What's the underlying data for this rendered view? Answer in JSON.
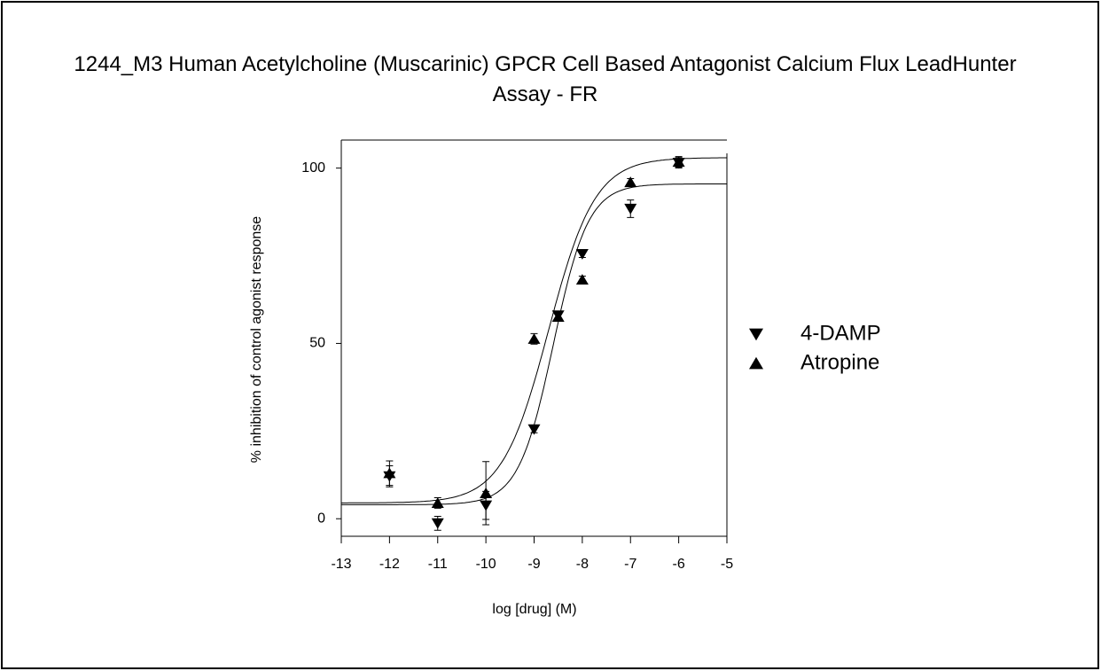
{
  "chart_data": {
    "type": "scatter",
    "title": "1244_M3 Human Acetylcholine (Muscarinic) GPCR Cell Based Antagonist Calcium Flux LeadHunter Assay - FR",
    "x_label": "log [drug] (M)",
    "y_label": "% inhibition of control agonist response",
    "x": [
      -12,
      -11,
      -10,
      -9,
      -8.5,
      -8,
      -7,
      -6
    ],
    "series": [
      {
        "name": "4-DAMP",
        "marker": "triangle-down",
        "color": "#000000",
        "values": [
          12.1,
          -1.3,
          3.8,
          25.5,
          58,
          75.5,
          88.4,
          101.5
        ],
        "errors": [
          3,
          2,
          4,
          1,
          1,
          1,
          2.5,
          1.5
        ],
        "fit": {
          "bottom": 4,
          "top": 95.5,
          "log_ic50": -8.6,
          "hill": 1.2
        }
      },
      {
        "name": "Atropine",
        "marker": "triangle-up",
        "color": "#000000",
        "values": [
          13,
          4.5,
          7.3,
          51.3,
          57.6,
          68.2,
          96,
          101.8
        ],
        "errors": [
          3.5,
          1.5,
          9,
          1.5,
          1,
          1,
          1,
          1.5
        ],
        "fit": {
          "bottom": 4.5,
          "top": 103,
          "log_ic50": -8.7,
          "hill": 0.9
        }
      }
    ],
    "xlim": [
      -13,
      -5
    ],
    "xticks": [
      -13,
      -12,
      -11,
      -10,
      -9,
      -8,
      -7,
      -6,
      -5
    ],
    "ylim": [
      -5,
      108
    ],
    "yticks": [
      0,
      50,
      100
    ],
    "grid": false,
    "legend": "right"
  }
}
